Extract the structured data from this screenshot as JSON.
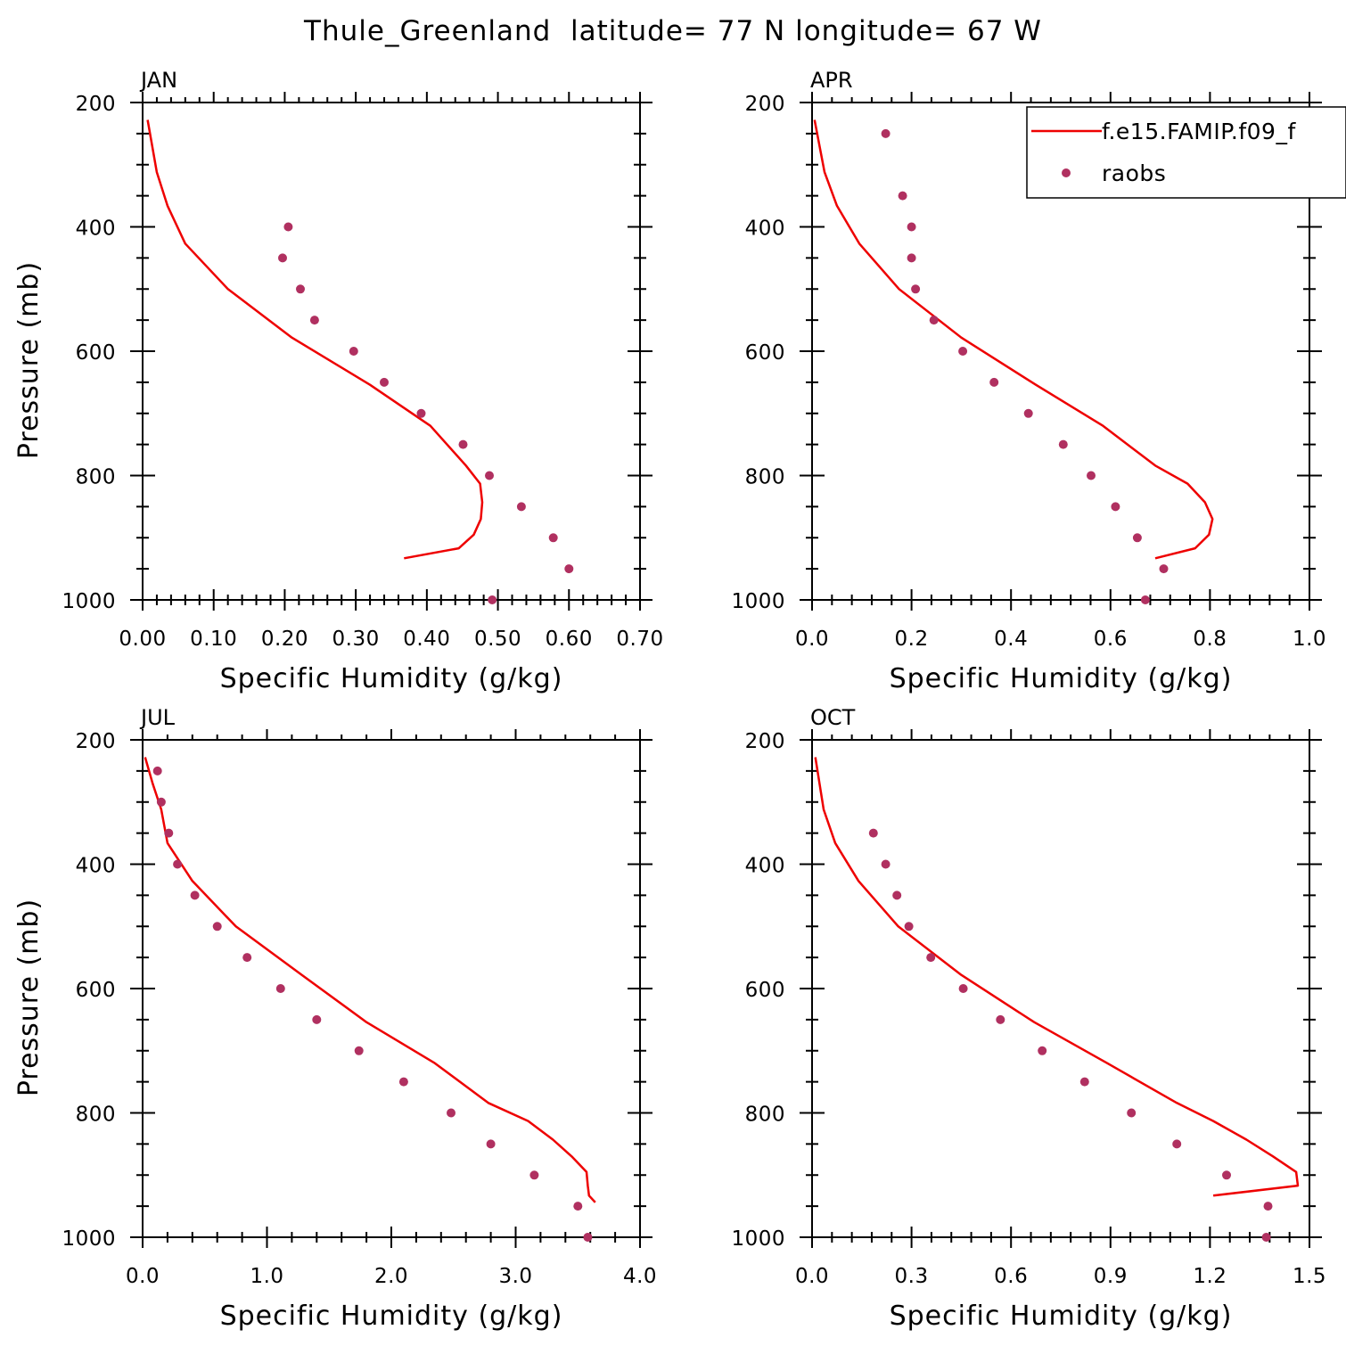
{
  "figure": {
    "title": "Thule_Greenland  latitude= 77 N longitude= 67 W"
  },
  "legend": {
    "model_label": "f.e15.FAMIP.f09_f",
    "obs_label": "raobs"
  },
  "colors": {
    "model_line": "#ee0000",
    "obs_marker": "#b03060",
    "axes": "#000000"
  },
  "chart_data": [
    {
      "type": "line",
      "panel_title": "JAN",
      "xlabel": "Specific Humidity (g/kg)",
      "ylabel": "Pressure (mb)",
      "xlim": [
        0.0,
        0.7
      ],
      "ylim": [
        200,
        1000
      ],
      "y_inverted": true,
      "x_ticks": [
        "0.00",
        "0.10",
        "0.20",
        "0.30",
        "0.40",
        "0.50",
        "0.60",
        "0.70"
      ],
      "x_tick_values": [
        0.0,
        0.1,
        0.2,
        0.3,
        0.4,
        0.5,
        0.6,
        0.7
      ],
      "x_minor_step": 0.02,
      "y_ticks": [
        "200",
        "400",
        "600",
        "800",
        "1000"
      ],
      "y_tick_values": [
        200,
        400,
        600,
        800,
        1000
      ],
      "y_minor_step": 50,
      "series": [
        {
          "name": "f.e15.FAMIP.f09_f",
          "kind": "line",
          "x": [
            0.007,
            0.02,
            0.035,
            0.06,
            0.12,
            0.21,
            0.32,
            0.405,
            0.455,
            0.475,
            0.478,
            0.476,
            0.466,
            0.445,
            0.368
          ],
          "y": [
            228,
            312,
            366,
            427,
            500,
            578,
            654,
            720,
            784,
            813,
            843,
            870,
            895,
            917,
            933
          ]
        },
        {
          "name": "raobs",
          "kind": "scatter",
          "x": [
            0.205,
            0.197,
            0.222,
            0.242,
            0.297,
            0.34,
            0.392,
            0.451,
            0.488,
            0.533,
            0.578,
            0.6,
            0.492
          ],
          "y": [
            400,
            450,
            500,
            550,
            600,
            650,
            700,
            750,
            800,
            850,
            900,
            950,
            1000
          ]
        }
      ]
    },
    {
      "type": "line",
      "panel_title": "APR",
      "xlabel": "Specific Humidity (g/kg)",
      "ylabel": "",
      "xlim": [
        0.0,
        1.0
      ],
      "ylim": [
        200,
        1000
      ],
      "y_inverted": true,
      "x_ticks": [
        "0.0",
        "0.2",
        "0.4",
        "0.6",
        "0.8",
        "1.0"
      ],
      "x_tick_values": [
        0.0,
        0.2,
        0.4,
        0.6,
        0.8,
        1.0
      ],
      "x_minor_step": 0.04,
      "y_ticks": [
        "200",
        "400",
        "600",
        "800",
        "1000"
      ],
      "y_tick_values": [
        200,
        400,
        600,
        800,
        1000
      ],
      "y_minor_step": 50,
      "series": [
        {
          "name": "f.e15.FAMIP.f09_f",
          "kind": "line",
          "x": [
            0.005,
            0.025,
            0.05,
            0.095,
            0.175,
            0.3,
            0.45,
            0.585,
            0.69,
            0.755,
            0.79,
            0.805,
            0.798,
            0.77,
            0.69
          ],
          "y": [
            228,
            312,
            366,
            427,
            500,
            578,
            654,
            720,
            784,
            813,
            843,
            870,
            895,
            917,
            933
          ]
        },
        {
          "name": "raobs",
          "kind": "scatter",
          "x": [
            0.148,
            0.182,
            0.2,
            0.2,
            0.208,
            0.245,
            0.303,
            0.366,
            0.435,
            0.505,
            0.561,
            0.61,
            0.654,
            0.707,
            0.67
          ],
          "y": [
            250,
            350,
            400,
            450,
            500,
            550,
            600,
            650,
            700,
            750,
            800,
            850,
            900,
            950,
            1000
          ]
        }
      ]
    },
    {
      "type": "line",
      "panel_title": "JUL",
      "xlabel": "Specific Humidity (g/kg)",
      "ylabel": "Pressure (mb)",
      "xlim": [
        0.0,
        4.0
      ],
      "ylim": [
        200,
        1000
      ],
      "y_inverted": true,
      "x_ticks": [
        "0.0",
        "1.0",
        "2.0",
        "3.0",
        "4.0"
      ],
      "x_tick_values": [
        0.0,
        1.0,
        2.0,
        3.0,
        4.0
      ],
      "x_minor_step": 0.2,
      "y_ticks": [
        "200",
        "400",
        "600",
        "800",
        "1000"
      ],
      "y_tick_values": [
        200,
        400,
        600,
        800,
        1000
      ],
      "y_minor_step": 50,
      "series": [
        {
          "name": "f.e15.FAMIP.f09_f",
          "kind": "line",
          "x": [
            0.02,
            0.08,
            0.15,
            0.2,
            0.4,
            0.75,
            1.28,
            1.8,
            2.35,
            2.78,
            3.1,
            3.3,
            3.45,
            3.57,
            3.58,
            3.59,
            3.64
          ],
          "y": [
            228,
            270,
            312,
            366,
            427,
            500,
            578,
            654,
            720,
            784,
            813,
            843,
            870,
            895,
            917,
            933,
            944
          ]
        },
        {
          "name": "raobs",
          "kind": "scatter",
          "x": [
            0.12,
            0.15,
            0.21,
            0.28,
            0.42,
            0.6,
            0.84,
            1.11,
            1.4,
            1.74,
            2.1,
            2.48,
            2.8,
            3.15,
            3.5,
            3.58
          ],
          "y": [
            250,
            300,
            350,
            400,
            450,
            500,
            550,
            600,
            650,
            700,
            750,
            800,
            850,
            900,
            950,
            1000
          ]
        }
      ]
    },
    {
      "type": "line",
      "panel_title": "OCT",
      "xlabel": "Specific Humidity (g/kg)",
      "ylabel": "",
      "xlim": [
        0.0,
        1.5
      ],
      "ylim": [
        200,
        1000
      ],
      "y_inverted": true,
      "x_ticks": [
        "0.0",
        "0.3",
        "0.6",
        "0.9",
        "1.2",
        "1.5"
      ],
      "x_tick_values": [
        0.0,
        0.3,
        0.6,
        0.9,
        1.2,
        1.5
      ],
      "x_minor_step": 0.06,
      "y_ticks": [
        "200",
        "400",
        "600",
        "800",
        "1000"
      ],
      "y_tick_values": [
        200,
        400,
        600,
        800,
        1000
      ],
      "y_minor_step": 50,
      "series": [
        {
          "name": "f.e15.FAMIP.f09_f",
          "kind": "line",
          "x": [
            0.01,
            0.035,
            0.07,
            0.14,
            0.26,
            0.45,
            0.67,
            0.89,
            1.1,
            1.21,
            1.31,
            1.39,
            1.46,
            1.465,
            1.21
          ],
          "y": [
            228,
            312,
            366,
            427,
            500,
            578,
            654,
            720,
            784,
            813,
            843,
            870,
            895,
            917,
            933
          ]
        },
        {
          "name": "raobs",
          "kind": "scatter",
          "x": [
            0.185,
            0.222,
            0.256,
            0.292,
            0.358,
            0.456,
            0.568,
            0.694,
            0.822,
            0.963,
            1.1,
            1.25,
            1.375,
            1.37
          ],
          "y": [
            350,
            400,
            450,
            500,
            550,
            600,
            650,
            700,
            750,
            800,
            850,
            900,
            950,
            1000
          ]
        }
      ]
    }
  ]
}
